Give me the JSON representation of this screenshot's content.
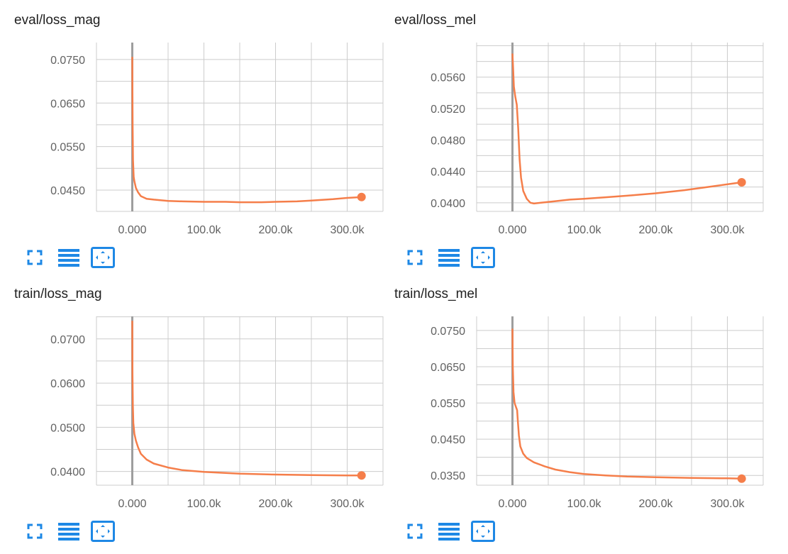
{
  "theme": {
    "line_color": "#f57e4a",
    "grid_color": "#cccccc",
    "zero_line_color": "#9e9e9e",
    "icon_color": "#1e88e5"
  },
  "controls": {
    "icons": [
      "fullscreen-icon",
      "list-icon",
      "fit-domain-icon"
    ]
  },
  "chart_data": [
    {
      "type": "line",
      "title": "eval/loss_mag",
      "xlim": [
        -50000,
        350000
      ],
      "ylim": [
        0.0401,
        0.0789
      ],
      "xticks": [
        0,
        100000,
        200000,
        300000
      ],
      "xtick_labels": [
        "0.000",
        "100.0k",
        "200.0k",
        "300.0k"
      ],
      "yticks": [
        0.045,
        0.055,
        0.065,
        0.075
      ],
      "ytick_labels": [
        "0.0450",
        "0.0550",
        "0.0650",
        "0.0750"
      ],
      "grid": true,
      "series": [
        {
          "x": [
            0,
            500,
            1000,
            2000,
            3000,
            5000,
            8000,
            12000,
            20000,
            30000,
            50000,
            70000,
            100000,
            130000,
            150000,
            180000,
            200000,
            230000,
            250000,
            280000,
            300000,
            320000
          ],
          "y": [
            0.0756,
            0.06,
            0.052,
            0.048,
            0.047,
            0.0455,
            0.0445,
            0.0436,
            0.043,
            0.0428,
            0.0425,
            0.0424,
            0.0423,
            0.0423,
            0.0422,
            0.0422,
            0.0423,
            0.0424,
            0.0426,
            0.0429,
            0.0432,
            0.0434
          ]
        }
      ]
    },
    {
      "type": "line",
      "title": "eval/loss_mel",
      "xlim": [
        -50000,
        350000
      ],
      "ylim": [
        0.0389,
        0.0604
      ],
      "xticks": [
        0,
        100000,
        200000,
        300000
      ],
      "xtick_labels": [
        "0.000",
        "100.0k",
        "200.0k",
        "300.0k"
      ],
      "yticks": [
        0.04,
        0.044,
        0.048,
        0.052,
        0.056
      ],
      "ytick_labels": [
        "0.0400",
        "0.0440",
        "0.0480",
        "0.0520",
        "0.0560"
      ],
      "grid": true,
      "series": [
        {
          "x": [
            0,
            1000,
            2000,
            4000,
            6000,
            8000,
            10000,
            12000,
            15000,
            20000,
            25000,
            30000,
            40000,
            60000,
            80000,
            100000,
            130000,
            160000,
            200000,
            240000,
            280000,
            320000
          ],
          "y": [
            0.059,
            0.057,
            0.0548,
            0.0535,
            0.0525,
            0.0495,
            0.0455,
            0.0432,
            0.0415,
            0.0405,
            0.04,
            0.0399,
            0.04,
            0.0402,
            0.0404,
            0.0405,
            0.0407,
            0.0409,
            0.0412,
            0.0416,
            0.0421,
            0.0426
          ]
        }
      ]
    },
    {
      "type": "line",
      "title": "train/loss_mag",
      "xlim": [
        -50000,
        350000
      ],
      "ylim": [
        0.0369,
        0.0751
      ],
      "xticks": [
        0,
        100000,
        200000,
        300000
      ],
      "xtick_labels": [
        "0.000",
        "100.0k",
        "200.0k",
        "300.0k"
      ],
      "yticks": [
        0.04,
        0.05,
        0.06,
        0.07
      ],
      "ytick_labels": [
        "0.0400",
        "0.0500",
        "0.0600",
        "0.0700"
      ],
      "grid": true,
      "series": [
        {
          "x": [
            0,
            300,
            800,
            1500,
            3000,
            5000,
            8000,
            12000,
            20000,
            30000,
            50000,
            70000,
            100000,
            150000,
            200000,
            250000,
            300000,
            320000
          ],
          "y": [
            0.0741,
            0.062,
            0.055,
            0.051,
            0.0485,
            0.047,
            0.0455,
            0.044,
            0.0427,
            0.0418,
            0.0409,
            0.0403,
            0.0399,
            0.0395,
            0.0393,
            0.0392,
            0.0391,
            0.0391
          ]
        }
      ]
    },
    {
      "type": "line",
      "title": "train/loss_mel",
      "xlim": [
        -50000,
        350000
      ],
      "ylim": [
        0.0323,
        0.0789
      ],
      "xticks": [
        0,
        100000,
        200000,
        300000
      ],
      "xtick_labels": [
        "0.000",
        "100.0k",
        "200.0k",
        "300.0k"
      ],
      "yticks": [
        0.035,
        0.045,
        0.055,
        0.065,
        0.075
      ],
      "ytick_labels": [
        "0.0350",
        "0.0450",
        "0.0550",
        "0.0650",
        "0.0750"
      ],
      "grid": true,
      "series": [
        {
          "x": [
            0,
            500,
            1500,
            3000,
            5000,
            6500,
            7500,
            9000,
            11000,
            15000,
            20000,
            30000,
            45000,
            60000,
            80000,
            100000,
            130000,
            160000,
            200000,
            250000,
            300000,
            320000
          ],
          "y": [
            0.0755,
            0.065,
            0.058,
            0.055,
            0.0538,
            0.053,
            0.05,
            0.046,
            0.043,
            0.041,
            0.0398,
            0.0386,
            0.0375,
            0.0366,
            0.0359,
            0.0354,
            0.035,
            0.0347,
            0.0345,
            0.0343,
            0.0342,
            0.0341
          ]
        }
      ]
    }
  ]
}
